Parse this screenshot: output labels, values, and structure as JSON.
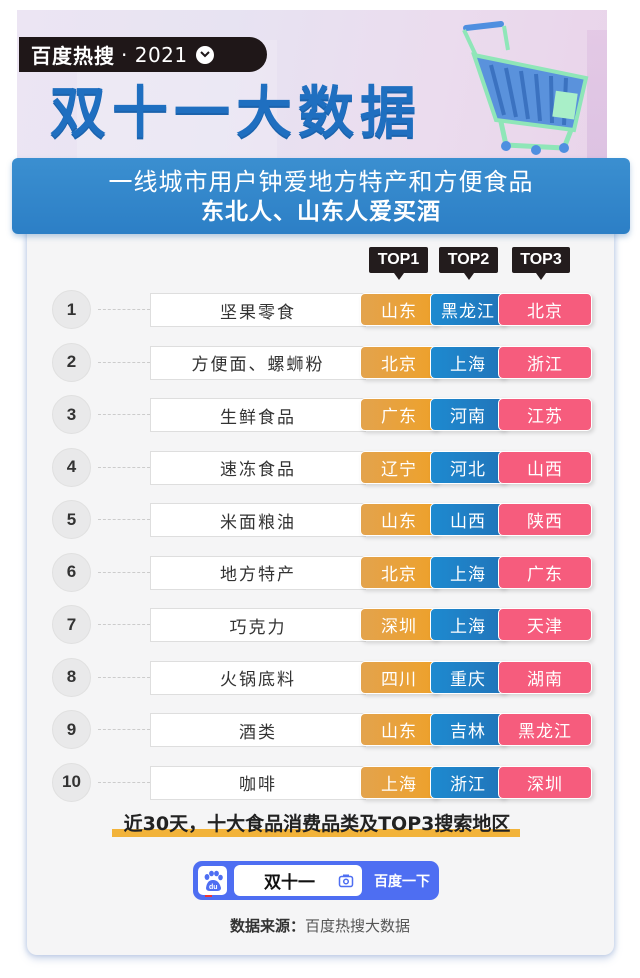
{
  "header": {
    "brand": "百度热搜",
    "year": "· 2021",
    "chevron_icon": "chevron-down-circle-icon",
    "title": "双十一大数据",
    "illustration": "shopping-cart-icon"
  },
  "subtitle": {
    "line1": "一线城市用户钟爱地方特产和方便食品",
    "line2": "东北人、山东人爱买酒"
  },
  "colors": {
    "top1": "#eea12a",
    "top2": "#2174b9",
    "top3": "#f65c7d",
    "title_blue": "#1f6fc0",
    "search_blue": "#4e6ef2",
    "underline": "#f2b33a"
  },
  "columns": [
    "TOP1",
    "TOP2",
    "TOP3"
  ],
  "rows": [
    {
      "rank": "1",
      "category": "坚果零食",
      "top1": "山东",
      "top2": "黑龙江",
      "top3": "北京"
    },
    {
      "rank": "2",
      "category": "方便面、螺蛳粉",
      "top1": "北京",
      "top2": "上海",
      "top3": "浙江"
    },
    {
      "rank": "3",
      "category": "生鲜食品",
      "top1": "广东",
      "top2": "河南",
      "top3": "江苏"
    },
    {
      "rank": "4",
      "category": "速冻食品",
      "top1": "辽宁",
      "top2": "河北",
      "top3": "山西"
    },
    {
      "rank": "5",
      "category": "米面粮油",
      "top1": "山东",
      "top2": "山西",
      "top3": "陕西"
    },
    {
      "rank": "6",
      "category": "地方特产",
      "top1": "北京",
      "top2": "上海",
      "top3": "广东"
    },
    {
      "rank": "7",
      "category": "巧克力",
      "top1": "深圳",
      "top2": "上海",
      "top3": "天津"
    },
    {
      "rank": "8",
      "category": "火锅底料",
      "top1": "四川",
      "top2": "重庆",
      "top3": "湖南"
    },
    {
      "rank": "9",
      "category": "酒类",
      "top1": "山东",
      "top2": "吉林",
      "top3": "黑龙江"
    },
    {
      "rank": "10",
      "category": "咖啡",
      "top1": "上海",
      "top2": "浙江",
      "top3": "深圳"
    }
  ],
  "footnote": "近30天，十大食品消费品类及TOP3搜索地区",
  "search": {
    "query": "双十一",
    "button_label": "百度一下",
    "logo_icon": "baidu-paw-icon",
    "camera_icon": "camera-icon"
  },
  "source": {
    "label": "数据来源：",
    "value": "百度热搜大数据"
  }
}
